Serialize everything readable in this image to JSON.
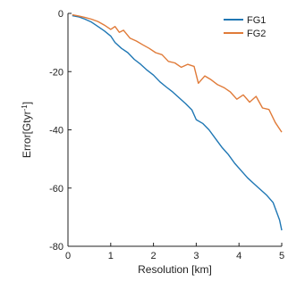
{
  "chart_data": {
    "type": "line",
    "xlabel": "Resolution [km]",
    "ylabel": "Error[Gtyr",
    "ylabel_superscript": "-1",
    "ylabel_close": "]",
    "xlim": [
      0,
      5
    ],
    "ylim": [
      -80,
      0
    ],
    "xticks": [
      0,
      1,
      2,
      3,
      4,
      5
    ],
    "yticks": [
      0,
      -20,
      -40,
      -60,
      -80
    ],
    "xtick_labels": [
      "0",
      "1",
      "2",
      "3",
      "4",
      "5"
    ],
    "ytick_labels": [
      "0",
      "-20",
      "-40",
      "-60",
      "-80"
    ],
    "grid": false,
    "legend_position": "top-right",
    "series": [
      {
        "name": "FG1",
        "color": "#1f77b4",
        "x": [
          0.1,
          0.25,
          0.4,
          0.55,
          0.7,
          0.85,
          1.0,
          1.1,
          1.25,
          1.4,
          1.55,
          1.7,
          1.85,
          2.0,
          2.15,
          2.3,
          2.45,
          2.6,
          2.75,
          2.9,
          3.0,
          3.15,
          3.3,
          3.45,
          3.6,
          3.75,
          3.9,
          4.05,
          4.2,
          4.35,
          4.5,
          4.65,
          4.8,
          4.95,
          5.0
        ],
        "y": [
          -0.8,
          -1.2,
          -2.0,
          -3.0,
          -4.5,
          -6.0,
          -7.8,
          -10.0,
          -12.0,
          -13.5,
          -15.8,
          -17.5,
          -19.5,
          -21.2,
          -23.5,
          -25.3,
          -27.0,
          -29.0,
          -31.0,
          -33.2,
          -36.5,
          -37.8,
          -40.0,
          -43.0,
          -46.0,
          -48.5,
          -51.5,
          -54.0,
          -56.5,
          -58.5,
          -60.5,
          -62.5,
          -65.0,
          -71.0,
          -74.5
        ]
      },
      {
        "name": "FG2",
        "color": "#e07b39",
        "x": [
          0.1,
          0.25,
          0.4,
          0.55,
          0.7,
          0.85,
          1.0,
          1.1,
          1.2,
          1.3,
          1.45,
          1.6,
          1.75,
          1.9,
          2.05,
          2.2,
          2.35,
          2.5,
          2.65,
          2.8,
          2.95,
          3.05,
          3.2,
          3.35,
          3.5,
          3.65,
          3.8,
          3.95,
          4.1,
          4.25,
          4.4,
          4.55,
          4.7,
          4.85,
          5.0
        ],
        "y": [
          -0.5,
          -0.9,
          -1.4,
          -2.0,
          -2.8,
          -4.0,
          -5.5,
          -4.5,
          -6.5,
          -5.8,
          -8.5,
          -9.5,
          -10.8,
          -12.0,
          -13.5,
          -14.2,
          -16.5,
          -17.0,
          -18.5,
          -17.5,
          -18.2,
          -24.0,
          -21.5,
          -22.8,
          -24.5,
          -25.5,
          -27.0,
          -29.5,
          -28.0,
          -30.5,
          -28.5,
          -32.5,
          -33.0,
          -37.5,
          -40.8
        ]
      }
    ]
  }
}
